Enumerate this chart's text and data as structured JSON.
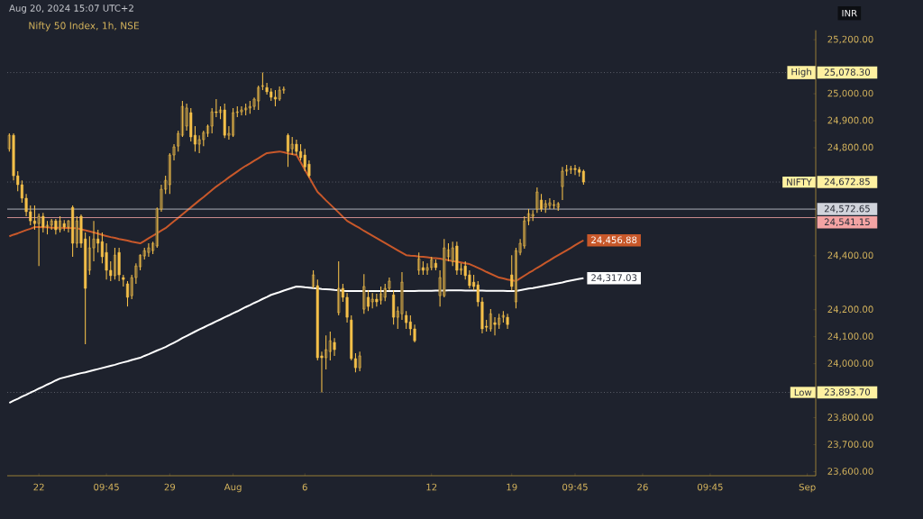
{
  "chart_data": {
    "type": "candlestick",
    "title": "Nifty 50 Index, 1h, NSE",
    "subtitle": "Aug 20, 2024 15:07 UTC+2",
    "color": "#f5c04a",
    "categories": [
      null,
      null,
      null,
      null,
      null,
      null,
      null,
      "22",
      null,
      null,
      null,
      null,
      null,
      null,
      null,
      null,
      null,
      null,
      null,
      null,
      null,
      null,
      null,
      "09:45",
      null,
      null,
      null,
      null,
      null,
      null,
      null,
      null,
      null,
      null,
      null,
      null,
      null,
      null,
      "29",
      null,
      null,
      null,
      null,
      null,
      null,
      null,
      null,
      null,
      null,
      null,
      null,
      null,
      null,
      "Aug",
      null,
      null,
      null,
      null,
      null,
      null,
      null,
      null,
      null,
      null,
      null,
      null,
      null,
      null,
      null,
      null,
      "6",
      null,
      null,
      null,
      null,
      null,
      null,
      null,
      null,
      null,
      null,
      null,
      null,
      null,
      null,
      null,
      null,
      null,
      null,
      null,
      null,
      null,
      null,
      null,
      null,
      null,
      null,
      null,
      null,
      null,
      "12",
      null,
      null,
      null,
      null,
      null,
      null,
      null,
      null,
      null,
      null,
      null,
      null,
      null,
      null,
      null,
      null,
      null,
      null,
      "19",
      null,
      null,
      null,
      null,
      null,
      null,
      null,
      null,
      null,
      null,
      null,
      null,
      null,
      null,
      "09:45",
      null,
      null,
      null,
      null,
      null,
      null,
      null,
      null,
      null,
      null,
      null,
      null,
      null,
      null,
      null,
      "26",
      null,
      null,
      null,
      null,
      null,
      null,
      null,
      null,
      null,
      null,
      null,
      null,
      null,
      null,
      null,
      "09:45",
      null,
      null,
      null,
      null,
      null,
      null,
      null,
      null,
      null,
      null,
      null,
      null,
      null,
      null,
      null,
      null,
      null,
      null,
      null,
      null,
      null,
      null,
      "Sep"
    ],
    "ohlc": [
      [
        24796,
        24853,
        24786,
        24846
      ],
      [
        24846,
        24853,
        24679,
        24696
      ],
      [
        24696,
        24713,
        24639,
        24663
      ],
      [
        24663,
        24679,
        24596,
        24613
      ],
      [
        24613,
        24629,
        24546,
        24563
      ],
      [
        24563,
        24586,
        24513,
        24529
      ],
      [
        24529,
        24586,
        24496,
        24519
      ],
      [
        24519,
        24556,
        24362,
        24546
      ],
      [
        24546,
        24559,
        24486,
        24506
      ],
      [
        24506,
        24529,
        24479,
        24513
      ],
      [
        24513,
        24536,
        24496,
        24529
      ],
      [
        24529,
        24536,
        24479,
        24496
      ],
      [
        24496,
        24546,
        24486,
        24529
      ],
      [
        24519,
        24532,
        24492,
        24506
      ],
      [
        24506,
        24532,
        24486,
        24529
      ],
      [
        24579,
        24586,
        24396,
        24446
      ],
      [
        24446,
        24546,
        24429,
        24529
      ],
      [
        24546,
        24553,
        24429,
        24446
      ],
      [
        24462,
        24486,
        24072,
        24279
      ],
      [
        24346,
        24472,
        24329,
        24429
      ],
      [
        24429,
        24529,
        24379,
        24462
      ],
      [
        24462,
        24496,
        24412,
        24446
      ],
      [
        24452,
        24486,
        24372,
        24396
      ],
      [
        24412,
        24446,
        24312,
        24346
      ],
      [
        24346,
        24379,
        24306,
        24326
      ],
      [
        24326,
        24429,
        24312,
        24402
      ],
      [
        24412,
        24429,
        24306,
        24329
      ],
      [
        24319,
        24329,
        24286,
        24312
      ],
      [
        24296,
        24306,
        24212,
        24246
      ],
      [
        24252,
        24329,
        24239,
        24319
      ],
      [
        24319,
        24372,
        24296,
        24362
      ],
      [
        24359,
        24405,
        24346,
        24402
      ],
      [
        24399,
        24429,
        24386,
        24419
      ],
      [
        24412,
        24446,
        24396,
        24429
      ],
      [
        24419,
        24452,
        24406,
        24446
      ],
      [
        24436,
        24579,
        24429,
        24573
      ],
      [
        24573,
        24663,
        24563,
        24646
      ],
      [
        24646,
        24696,
        24629,
        24679
      ],
      [
        24663,
        24780,
        24629,
        24773
      ],
      [
        24773,
        24813,
        24753,
        24803
      ],
      [
        24806,
        24863,
        24786,
        24853
      ],
      [
        24846,
        24973,
        24840,
        24953
      ],
      [
        24880,
        24963,
        24863,
        24947
      ],
      [
        24930,
        24947,
        24823,
        24840
      ],
      [
        24846,
        24880,
        24786,
        24813
      ],
      [
        24813,
        24846,
        24780,
        24830
      ],
      [
        24830,
        24863,
        24806,
        24856
      ],
      [
        24853,
        24886,
        24840,
        24880
      ],
      [
        24880,
        24947,
        24853,
        24933
      ],
      [
        24933,
        24980,
        24913,
        24930
      ],
      [
        24930,
        24953,
        24906,
        24940
      ],
      [
        24940,
        24963,
        24836,
        24846
      ],
      [
        24846,
        24880,
        24830,
        24853
      ],
      [
        24846,
        24947,
        24840,
        24930
      ],
      [
        24930,
        24953,
        24913,
        24933
      ],
      [
        24933,
        24953,
        24920,
        24940
      ],
      [
        24940,
        24963,
        24920,
        24947
      ],
      [
        24947,
        24973,
        24926,
        24953
      ],
      [
        24953,
        24986,
        24940,
        24980
      ],
      [
        24973,
        25030,
        24940,
        25023
      ],
      [
        25027,
        25078.3,
        25013,
        25030
      ],
      [
        25023,
        25040,
        24997,
        25007
      ],
      [
        25007,
        25020,
        24973,
        24987
      ],
      [
        24987,
        25013,
        24953,
        24980
      ],
      [
        24980,
        25027,
        24973,
        25013
      ],
      [
        25013,
        25027,
        25000,
        25017
      ],
      [
        24846,
        24853,
        24729,
        24786
      ],
      [
        24796,
        24840,
        24773,
        24813
      ],
      [
        24813,
        24830,
        24773,
        24786
      ],
      [
        24786,
        24813,
        24753,
        24763
      ],
      [
        24773,
        24796,
        24713,
        24729
      ],
      [
        24739,
        24753,
        24689,
        24696
      ],
      [
        24286,
        24346,
        24279,
        24329
      ],
      [
        24289,
        24312,
        24012,
        24022
      ],
      [
        24029,
        24045,
        23893.7,
        24022
      ],
      [
        24022,
        24105,
        23979,
        24052
      ],
      [
        24045,
        24119,
        24012,
        24085
      ],
      [
        24079,
        24095,
        24029,
        24052
      ],
      [
        24189,
        24379,
        24179,
        24279
      ],
      [
        24279,
        24296,
        24229,
        24246
      ],
      [
        24246,
        24262,
        24152,
        24172
      ],
      [
        24162,
        24179,
        24012,
        24019
      ],
      [
        24019,
        24039,
        23968,
        23985
      ],
      [
        23985,
        24045,
        23972,
        24029
      ],
      [
        24202,
        24332,
        24185,
        24286
      ],
      [
        24246,
        24272,
        24195,
        24212
      ],
      [
        24229,
        24262,
        24205,
        24239
      ],
      [
        24239,
        24259,
        24212,
        24229
      ],
      [
        24235,
        24286,
        24219,
        24259
      ],
      [
        24246,
        24296,
        24232,
        24279
      ],
      [
        24279,
        24319,
        24272,
        24306
      ],
      [
        24255,
        24272,
        24145,
        24172
      ],
      [
        24172,
        24212,
        24129,
        24195
      ],
      [
        24185,
        24339,
        24162,
        24302
      ],
      [
        24179,
        24195,
        24129,
        24152
      ],
      [
        24155,
        24179,
        24105,
        24129
      ],
      [
        24129,
        24145,
        24079,
        24085
      ],
      [
        24346,
        24412,
        24329,
        24389
      ],
      [
        24356,
        24379,
        24329,
        24346
      ],
      [
        24346,
        24372,
        24329,
        24356
      ],
      [
        24356,
        24396,
        24346,
        24386
      ],
      [
        24372,
        24386,
        24346,
        24356
      ],
      [
        24252,
        24346,
        24212,
        24319
      ],
      [
        24252,
        24462,
        24246,
        24429
      ],
      [
        24396,
        24446,
        24379,
        24422
      ],
      [
        24379,
        24452,
        24362,
        24429
      ],
      [
        24436,
        24452,
        24329,
        24346
      ],
      [
        24346,
        24372,
        24329,
        24352
      ],
      [
        24362,
        24379,
        24312,
        24326
      ],
      [
        24329,
        24346,
        24279,
        24289
      ],
      [
        24302,
        24329,
        24272,
        24286
      ],
      [
        24292,
        24306,
        24212,
        24229
      ],
      [
        24229,
        24246,
        24112,
        24129
      ],
      [
        24139,
        24162,
        24119,
        24135
      ],
      [
        24129,
        24202,
        24119,
        24185
      ],
      [
        24152,
        24172,
        24105,
        24145
      ],
      [
        24145,
        24185,
        24129,
        24169
      ],
      [
        24172,
        24195,
        24152,
        24179
      ],
      [
        24172,
        24185,
        24129,
        24145
      ],
      [
        24329,
        24402,
        24272,
        24286
      ],
      [
        24229,
        24429,
        24205,
        24419
      ],
      [
        24412,
        24462,
        24402,
        24446
      ],
      [
        24436,
        24546,
        24426,
        24529
      ],
      [
        24529,
        24573,
        24513,
        24556
      ],
      [
        24546,
        24569,
        24529,
        24553
      ],
      [
        24573,
        24653,
        24559,
        24636
      ],
      [
        24606,
        24629,
        24563,
        24573
      ],
      [
        24579,
        24606,
        24559,
        24593
      ],
      [
        24586,
        24613,
        24573,
        24596
      ],
      [
        24586,
        24606,
        24573,
        24589
      ],
      [
        24579,
        24599,
        24566,
        24593
      ],
      [
        24656,
        24729,
        24606,
        24713
      ],
      [
        24713,
        24736,
        24696,
        24719
      ],
      [
        24719,
        24733,
        24703,
        24723
      ],
      [
        24723,
        24736,
        24699,
        24719
      ],
      [
        24719,
        24729,
        24693,
        24709
      ],
      [
        24713,
        24719,
        24663,
        24672.85
      ],
      null,
      null,
      null,
      null,
      null,
      null,
      null,
      null,
      null,
      null,
      null,
      null,
      null,
      null,
      null,
      null,
      null,
      null,
      null,
      null,
      null,
      null,
      null,
      null,
      null,
      null,
      null,
      null,
      null,
      null,
      null,
      null,
      null,
      null,
      null,
      null,
      null,
      null,
      null,
      null,
      null,
      null,
      null,
      null,
      null,
      null,
      null,
      null,
      null,
      null,
      null,
      null,
      null
    ],
    "series": [
      {
        "type": "line",
        "color": "#c8582a",
        "values": [
          24472,
          24478,
          24483,
          24489,
          24495,
          24500,
          24506,
          24506,
          24505,
          24505,
          24504,
          24504,
          24504,
          24503,
          24503,
          24502,
          24502,
          24498,
          24494,
          24490,
          24486,
          24482,
          24477,
          24473,
          24469,
          24466,
          24462,
          24459,
          24456,
          24452,
          24449,
          24446,
          24455,
          24465,
          24474,
          24483,
          24493,
          24502,
          24515,
          24528,
          24540,
          24553,
          24566,
          24579,
          24592,
          24605,
          24617,
          24630,
          24643,
          24656,
          24667,
          24678,
          24690,
          24701,
          24712,
          24723,
          24733,
          24742,
          24752,
          24761,
          24771,
          24780,
          24782,
          24784,
          24786,
          24783,
          24779,
          24776,
          24773,
          24746,
          24718,
          24691,
          24663,
          24636,
          24621,
          24605,
          24590,
          24575,
          24560,
          24544,
          24529,
          24520,
          24511,
          24502,
          24492,
          24483,
          24474,
          24465,
          24456,
          24447,
          24438,
          24429,
          24420,
          24411,
          24402,
          24400,
          24399,
          24397,
          24396,
          24394,
          24392,
          24391,
          24389,
          24386,
          24383,
          24380,
          24378,
          24375,
          24372,
          24369,
          24362,
          24355,
          24348,
          24340,
          24333,
          24326,
          24319,
          24316,
          24312,
          24309,
          24306,
          24316,
          24326,
          24336,
          24345,
          24355,
          24364,
          24374,
          24383,
          24393,
          24402,
          24411,
          24420,
          24429,
          24439,
          24448,
          24456.88,
          null,
          null,
          null,
          null,
          null,
          null,
          null,
          null,
          null,
          null,
          null,
          null,
          null,
          null,
          null,
          null,
          null,
          null,
          null,
          null,
          null,
          null,
          null,
          null,
          null,
          null,
          null,
          null,
          null,
          null,
          null,
          null,
          null,
          null,
          null,
          null,
          null,
          null,
          null,
          null,
          null,
          null,
          null,
          null,
          null,
          null,
          null,
          null,
          null,
          null,
          null,
          null,
          null
        ],
        "value_labels": [
          null,
          null,
          null,
          null,
          null,
          null,
          null,
          null,
          null,
          null,
          null,
          null,
          null,
          null,
          null,
          null,
          null,
          null,
          null,
          null,
          null,
          null,
          null,
          null,
          null,
          null,
          null,
          null,
          null,
          null,
          null,
          null,
          null,
          null,
          null,
          null,
          null,
          null,
          null,
          null,
          null,
          null,
          null,
          null,
          null,
          null,
          null,
          null,
          null,
          null,
          null,
          null,
          null,
          null,
          null,
          null,
          null,
          null,
          null,
          null,
          null,
          null,
          null,
          null,
          null,
          null,
          null,
          null,
          null,
          null,
          null,
          null,
          null,
          null,
          null,
          null,
          null,
          null,
          null,
          null,
          null,
          null,
          null,
          null,
          null,
          null,
          null,
          null,
          null,
          null,
          null,
          null,
          null,
          null,
          null,
          null,
          null,
          null,
          null,
          null,
          null,
          null,
          null,
          null,
          null,
          null,
          null,
          null,
          null,
          null,
          null,
          null,
          null,
          null,
          null,
          null,
          null,
          null,
          null,
          null,
          null,
          null,
          null,
          null,
          null,
          null,
          null,
          null,
          null,
          null,
          null,
          null,
          null,
          null,
          null,
          null,
          "24,456.88",
          null,
          null,
          null,
          null,
          null,
          null,
          null,
          null,
          null,
          null,
          null,
          null,
          null,
          null,
          null,
          null,
          null,
          null,
          null,
          null,
          null,
          null,
          null,
          null,
          null,
          null,
          null,
          null,
          null,
          null,
          null,
          null,
          null,
          null,
          null,
          null,
          null,
          null,
          null,
          null,
          null,
          null,
          null,
          null,
          null,
          null,
          null,
          null,
          null,
          null,
          null,
          null,
          null
        ]
      },
      {
        "type": "line",
        "color": "#ffffff",
        "values": [
          23855,
          23863,
          23870,
          23878,
          23885,
          23893,
          23900,
          23908,
          23915,
          23923,
          23930,
          23938,
          23945,
          23949,
          23953,
          23957,
          23961,
          23965,
          23968,
          23972,
          23976,
          23980,
          23984,
          23988,
          23992,
          23996,
          24001,
          24005,
          24009,
          24014,
          24018,
          24022,
          24029,
          24035,
          24042,
          24049,
          24055,
          24062,
          24070,
          24078,
          24086,
          24095,
          24103,
          24111,
          24119,
          24127,
          24134,
          24142,
          24149,
          24157,
          24164,
          24172,
          24179,
          24187,
          24194,
          24202,
          24210,
          24217,
          24225,
          24232,
          24240,
          24247,
          24255,
          24260,
          24265,
          24271,
          24276,
          24281,
          24286,
          24285,
          24283,
          24282,
          24280,
          24279,
          24277,
          24276,
          24275,
          24273,
          24272,
          24270,
          24269,
          24269,
          24269,
          24269,
          24269,
          24269,
          24269,
          24269,
          24269,
          24269,
          24269,
          24269,
          24269,
          24269,
          24269,
          24269,
          24269,
          24270,
          24270,
          24270,
          24270,
          24271,
          24271,
          24271,
          24272,
          24272,
          24272,
          24272,
          24271,
          24271,
          24271,
          24271,
          24271,
          24270,
          24270,
          24270,
          24270,
          24270,
          24269,
          24269,
          24269,
          24272,
          24275,
          24278,
          24280,
          24283,
          24286,
          24289,
          24292,
          24295,
          24298,
          24301,
          24305,
          24308,
          24311,
          24314,
          24317.03,
          null,
          null,
          null,
          null,
          null,
          null,
          null,
          null,
          null,
          null,
          null,
          null,
          null,
          null,
          null,
          null,
          null,
          null,
          null,
          null,
          null,
          null,
          null,
          null,
          null,
          null,
          null,
          null,
          null,
          null,
          null,
          null,
          null,
          null,
          null,
          null,
          null,
          null,
          null,
          null,
          null,
          null,
          null,
          null,
          null,
          null,
          null,
          null,
          null,
          null,
          null,
          null,
          null
        ],
        "value_labels": [
          null,
          null,
          null,
          null,
          null,
          null,
          null,
          null,
          null,
          null,
          null,
          null,
          null,
          null,
          null,
          null,
          null,
          null,
          null,
          null,
          null,
          null,
          null,
          null,
          null,
          null,
          null,
          null,
          null,
          null,
          null,
          null,
          null,
          null,
          null,
          null,
          null,
          null,
          null,
          null,
          null,
          null,
          null,
          null,
          null,
          null,
          null,
          null,
          null,
          null,
          null,
          null,
          null,
          null,
          null,
          null,
          null,
          null,
          null,
          null,
          null,
          null,
          null,
          null,
          null,
          null,
          null,
          null,
          null,
          null,
          null,
          null,
          null,
          null,
          null,
          null,
          null,
          null,
          null,
          null,
          null,
          null,
          null,
          null,
          null,
          null,
          null,
          null,
          null,
          null,
          null,
          null,
          null,
          null,
          null,
          null,
          null,
          null,
          null,
          null,
          null,
          null,
          null,
          null,
          null,
          null,
          null,
          null,
          null,
          null,
          null,
          null,
          null,
          null,
          null,
          null,
          null,
          null,
          null,
          null,
          null,
          null,
          null,
          null,
          null,
          null,
          null,
          null,
          null,
          null,
          null,
          null,
          null,
          null,
          null,
          null,
          "24,317.03",
          null,
          null,
          null,
          null,
          null,
          null,
          null,
          null,
          null,
          null,
          null,
          null,
          null,
          null,
          null,
          null,
          null,
          null,
          null,
          null,
          null,
          null,
          null,
          null,
          null,
          null,
          null,
          null,
          null,
          null,
          null,
          null,
          null,
          null,
          null,
          null,
          null,
          null,
          null,
          null,
          null,
          null,
          null,
          null,
          null,
          null,
          null,
          null,
          null,
          null,
          null,
          null,
          null
        ]
      }
    ],
    "ylim": [
      23585,
      25235
    ],
    "yticks": [
      {
        "value": 23600,
        "label": "23,600.00"
      },
      {
        "value": 23700,
        "label": "23,700.00"
      },
      {
        "value": 23800,
        "label": "23,800.00"
      },
      {
        "value": 24000,
        "label": "24,000.00"
      },
      {
        "value": 24100,
        "label": "24,100.00"
      },
      {
        "value": 24200,
        "label": "24,200.00"
      },
      {
        "value": 24400,
        "label": "24,400.00"
      },
      {
        "value": 24800,
        "label": "24,800.00"
      },
      {
        "value": 24900,
        "label": "24,900.00"
      },
      {
        "value": 25000,
        "label": "25,000.00"
      },
      {
        "value": 25200,
        "label": "25,200.00"
      }
    ],
    "ref_lines": [
      {
        "axis": "y",
        "value": 25078.3,
        "label": "High",
        "color": "#7d808a",
        "line_style": "dotted"
      },
      {
        "axis": "y",
        "value": 24672.85,
        "label": "NIFTY",
        "color": "#7d808a",
        "line_style": "dotted"
      },
      {
        "axis": "y",
        "value": 24572.65,
        "label": "24,572.65",
        "color": "#d1d4dc",
        "line_style": "solid"
      },
      {
        "axis": "y",
        "value": 24541.15,
        "label": "24,541.15",
        "color": "#f4a3a3",
        "line_style": "solid"
      },
      {
        "axis": "y",
        "value": 23893.7,
        "label": "Low",
        "color": "#7d808a",
        "line_style": "dotted"
      }
    ],
    "annotations": [
      "INR",
      "25,078.30",
      "24,672.85",
      "23,893.70"
    ]
  }
}
